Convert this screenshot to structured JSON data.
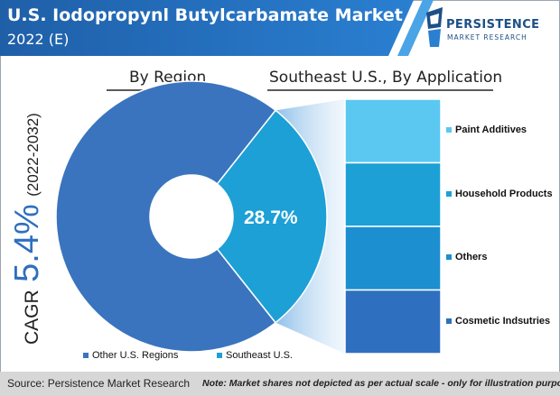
{
  "header": {
    "title_line1": "U.S. Iodopropynl Butylcarbamate Market",
    "title_line2": "2022 (E)"
  },
  "logo": {
    "name_line1": "PERSISTENCE",
    "name_line2": "MARKET RESEARCH"
  },
  "cagr": {
    "prefix": "CAGR",
    "value": "5.4%",
    "period": "(2022-2032)"
  },
  "chart_data": [
    {
      "type": "pie",
      "title": "By Region",
      "labels": [
        "Other U.S. Regions",
        "Southeast U.S."
      ],
      "values": [
        71.3,
        28.7
      ],
      "data_labels": [
        "",
        "28.7%"
      ],
      "colors": [
        "#3a74be",
        "#1ca0d6"
      ],
      "legend": "bottom"
    },
    {
      "type": "bar",
      "stacked": true,
      "title": "Southeast U.S., By Application",
      "categories": [
        "Paint Additives",
        "Household Products",
        "Others",
        "Cosmetic Indsutries"
      ],
      "colors": [
        "#5ac8f0",
        "#1ca0d6",
        "#1b8fd0",
        "#2f6fbf"
      ],
      "legend": "right"
    }
  ],
  "footer": {
    "source": "Source: Persistence Market Research",
    "note": "Note: Market shares not depicted as per actual scale - only for illustration purposes"
  }
}
